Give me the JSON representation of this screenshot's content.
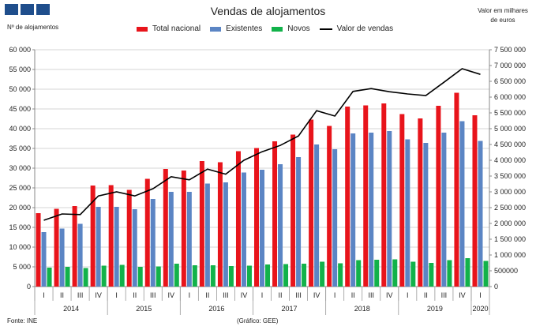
{
  "header": {
    "logo_icon": "ine-logo-blocks",
    "logo_color": "#1f4e8c"
  },
  "chart_data": {
    "type": "bar",
    "title": "Vendas de alojamentos",
    "ylabel": "Nº de alojamentos",
    "y2label": "Valor em milhares de euros",
    "source": "Fonte: INE",
    "credit": "(Gráfico: GEE)",
    "quarters": [
      "I",
      "II",
      "III",
      "IV",
      "I",
      "II",
      "III",
      "IV",
      "I",
      "II",
      "III",
      "IV",
      "I",
      "II",
      "III",
      "IV",
      "I",
      "II",
      "III",
      "IV",
      "I",
      "II",
      "III",
      "IV",
      "I"
    ],
    "years": [
      {
        "label": "2014",
        "span": 4
      },
      {
        "label": "2015",
        "span": 4
      },
      {
        "label": "2016",
        "span": 4
      },
      {
        "label": "2017",
        "span": 4
      },
      {
        "label": "2018",
        "span": 4
      },
      {
        "label": "2019",
        "span": 4
      },
      {
        "label": "2020",
        "span": 1
      }
    ],
    "ylim": [
      0,
      60000
    ],
    "yticks": [
      "0",
      "5 000",
      "10 000",
      "15 000",
      "20 000",
      "25 000",
      "30 000",
      "35 000",
      "40 000",
      "45 000",
      "50 000",
      "55 000",
      "60 000"
    ],
    "y2lim": [
      0,
      7500000
    ],
    "y2ticks": [
      "0",
      "500000",
      "1 000 000",
      "1 500 000",
      "2 000 000",
      "2 500 000",
      "3 000 000",
      "3 500 000",
      "4 000 000",
      "4 500 000",
      "5 000 000",
      "5 500 000",
      "6 000 000",
      "6 500 000",
      "7 000 000",
      "7 500 000"
    ],
    "series": [
      {
        "name": "Total nacional",
        "color": "#e8141b",
        "axis": "left",
        "values": [
          18600,
          19700,
          20400,
          25600,
          25700,
          24500,
          27300,
          29800,
          29400,
          31800,
          31500,
          34300,
          35100,
          36800,
          38500,
          42300,
          40700,
          45600,
          45900,
          46400,
          43700,
          42600,
          45800,
          49100,
          43400
        ]
      },
      {
        "name": "Existentes",
        "color": "#5b85c4",
        "axis": "left",
        "values": [
          13800,
          14700,
          15900,
          20200,
          20200,
          19600,
          22200,
          24000,
          24000,
          26100,
          26400,
          28900,
          29600,
          31000,
          32800,
          36000,
          34800,
          38800,
          39000,
          39400,
          37300,
          36400,
          39000,
          41900,
          36900
        ]
      },
      {
        "name": "Novos",
        "color": "#12b24a",
        "axis": "left",
        "values": [
          4800,
          5000,
          4700,
          5300,
          5500,
          5000,
          5100,
          5800,
          5400,
          5400,
          5200,
          5300,
          5600,
          5700,
          5800,
          6300,
          5900,
          6700,
          6800,
          6900,
          6300,
          6000,
          6700,
          7200,
          6500
        ]
      },
      {
        "name": "Valor de vendas",
        "color": "#000000",
        "axis": "right",
        "type": "line",
        "values": [
          2100000,
          2300000,
          2280000,
          2870000,
          3000000,
          2870000,
          3100000,
          3480000,
          3380000,
          3720000,
          3560000,
          4000000,
          4270000,
          4470000,
          4770000,
          5570000,
          5400000,
          6180000,
          6270000,
          6170000,
          6100000,
          6050000,
          6470000,
          6900000,
          6720000
        ]
      }
    ]
  }
}
